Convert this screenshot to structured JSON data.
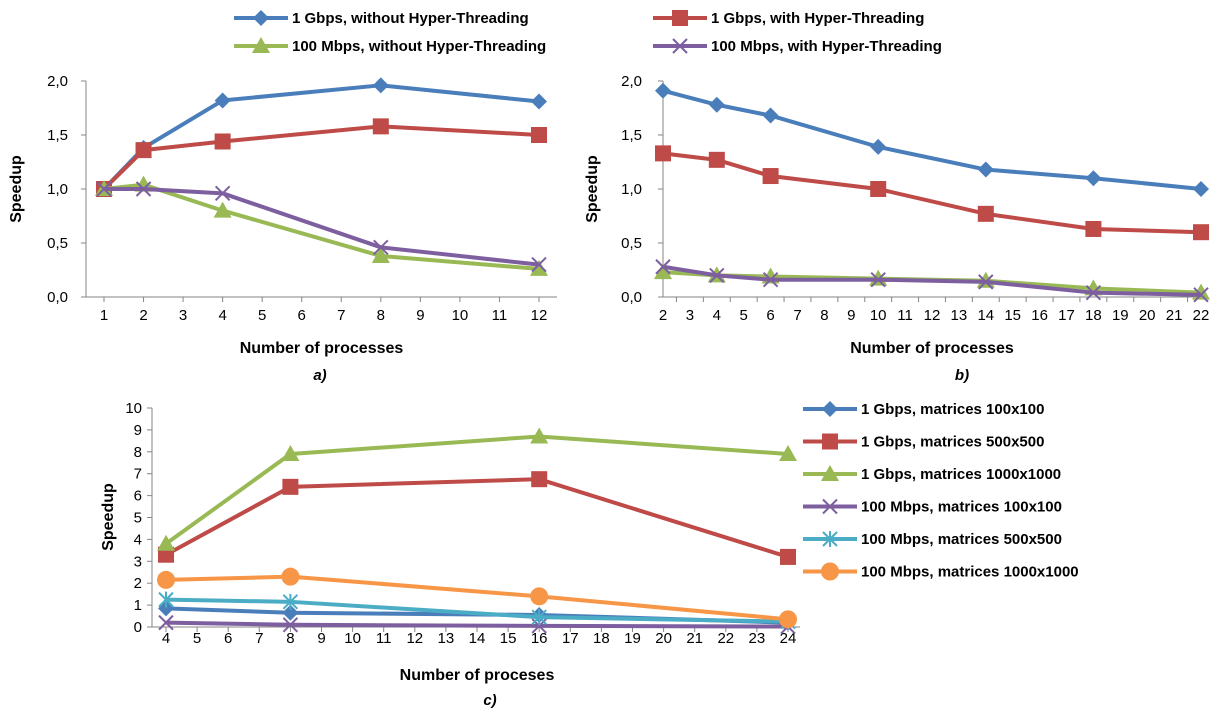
{
  "top_legend": [
    {
      "label": "1 Gbps, without Hyper-Threading",
      "color": "#4a7ebb",
      "marker": "diamond"
    },
    {
      "label": "1 Gbps, with Hyper-Threading",
      "color": "#be4b48",
      "marker": "square"
    },
    {
      "label": "100 Mbps, without Hyper-Threading",
      "color": "#98b954",
      "marker": "triangle"
    },
    {
      "label": "100 Mbps, with Hyper-Threading",
      "color": "#7d5fa0",
      "marker": "x"
    }
  ],
  "bottom_legend": [
    {
      "label": "1 Gbps, matrices 100x100",
      "color": "#4a7ebb",
      "marker": "diamond"
    },
    {
      "label": "1 Gbps, matrices 500x500",
      "color": "#be4b48",
      "marker": "square"
    },
    {
      "label": "1 Gbps, matrices 1000x1000",
      "color": "#98b954",
      "marker": "triangle"
    },
    {
      "label": "100 Mbps, matrices 100x100",
      "color": "#7d5fa0",
      "marker": "x"
    },
    {
      "label": "100 Mbps, matrices 500x500",
      "color": "#4bacc6",
      "marker": "star"
    },
    {
      "label": "100 Mbps, matrices 1000x1000",
      "color": "#f79646",
      "marker": "circle"
    }
  ],
  "chart_data": [
    {
      "type": "line",
      "caption": "a)",
      "xlabel": "Number of processes",
      "ylabel": "Speedup",
      "xlim": [
        1,
        12
      ],
      "ylim": [
        0,
        2
      ],
      "xticks": [
        "1",
        "2",
        "3",
        "4",
        "5",
        "6",
        "7",
        "8",
        "9",
        "10",
        "11",
        "12"
      ],
      "yticks": [
        "0,0",
        "0,5",
        "1,0",
        "1,5",
        "2,0"
      ],
      "series": [
        {
          "name": "1 Gbps, without Hyper-Threading",
          "x": [
            1,
            2,
            4,
            8,
            12
          ],
          "y": [
            1.0,
            1.38,
            1.82,
            1.96,
            1.81
          ]
        },
        {
          "name": "1 Gbps, with Hyper-Threading",
          "x": [
            1,
            2,
            4,
            8,
            12
          ],
          "y": [
            1.0,
            1.36,
            1.44,
            1.58,
            1.5
          ]
        },
        {
          "name": "100 Mbps, without Hyper-Threading",
          "x": [
            1,
            2,
            4,
            8,
            12
          ],
          "y": [
            1.0,
            1.04,
            0.8,
            0.38,
            0.26
          ]
        },
        {
          "name": "100 Mbps, with Hyper-Threading",
          "x": [
            1,
            2,
            4,
            8,
            12
          ],
          "y": [
            1.0,
            1.0,
            0.96,
            0.46,
            0.3
          ]
        }
      ]
    },
    {
      "type": "line",
      "caption": "b)",
      "xlabel": "Number of processes",
      "ylabel": "Speedup",
      "xlim": [
        2,
        22
      ],
      "ylim": [
        0,
        2
      ],
      "xticks": [
        "2",
        "3",
        "4",
        "5",
        "6",
        "7",
        "8",
        "9",
        "10",
        "11",
        "12",
        "13",
        "14",
        "15",
        "16",
        "17",
        "18",
        "19",
        "20",
        "21",
        "22"
      ],
      "yticks": [
        "0,0",
        "0,5",
        "1,0",
        "1,5",
        "2,0"
      ],
      "series": [
        {
          "name": "1 Gbps, without Hyper-Threading",
          "x": [
            2,
            4,
            6,
            10,
            14,
            18,
            22
          ],
          "y": [
            1.91,
            1.78,
            1.68,
            1.39,
            1.18,
            1.1,
            1.0
          ]
        },
        {
          "name": "1 Gbps, with Hyper-Threading",
          "x": [
            2,
            4,
            6,
            10,
            14,
            18,
            22
          ],
          "y": [
            1.33,
            1.27,
            1.12,
            1.0,
            0.77,
            0.63,
            0.6
          ]
        },
        {
          "name": "100 Mbps, without Hyper-Threading",
          "x": [
            2,
            4,
            6,
            10,
            14,
            18,
            22
          ],
          "y": [
            0.23,
            0.2,
            0.19,
            0.17,
            0.15,
            0.08,
            0.04
          ]
        },
        {
          "name": "100 Mbps, with Hyper-Threading",
          "x": [
            2,
            4,
            6,
            10,
            14,
            18,
            22
          ],
          "y": [
            0.28,
            0.2,
            0.16,
            0.16,
            0.14,
            0.04,
            0.02
          ]
        }
      ]
    },
    {
      "type": "line",
      "caption": "c)",
      "xlabel": "Number of proceses",
      "ylabel": "Speedup",
      "xlim": [
        4,
        24
      ],
      "ylim": [
        0,
        10
      ],
      "xticks": [
        "4",
        "5",
        "6",
        "7",
        "8",
        "9",
        "10",
        "11",
        "12",
        "13",
        "14",
        "15",
        "16",
        "17",
        "18",
        "19",
        "20",
        "21",
        "22",
        "23",
        "24"
      ],
      "yticks": [
        "0",
        "1",
        "2",
        "3",
        "4",
        "5",
        "6",
        "7",
        "8",
        "9",
        "10"
      ],
      "series": [
        {
          "name": "1 Gbps, matrices 100x100",
          "x": [
            4,
            8,
            16,
            24
          ],
          "y": [
            0.85,
            0.65,
            0.55,
            0.2
          ]
        },
        {
          "name": "1 Gbps, matrices 500x500",
          "x": [
            4,
            8,
            16,
            24
          ],
          "y": [
            3.3,
            6.4,
            6.75,
            3.2
          ]
        },
        {
          "name": "1 Gbps, matrices 1000x1000",
          "x": [
            4,
            8,
            16,
            24
          ],
          "y": [
            3.8,
            7.9,
            8.7,
            7.9
          ]
        },
        {
          "name": "100 Mbps, matrices 100x100",
          "x": [
            4,
            8,
            16,
            24
          ],
          "y": [
            0.2,
            0.1,
            0.05,
            0.02
          ]
        },
        {
          "name": "100 Mbps, matrices 500x500",
          "x": [
            4,
            8,
            16,
            24
          ],
          "y": [
            1.25,
            1.15,
            0.45,
            0.25
          ]
        },
        {
          "name": "100 Mbps, matrices 1000x1000",
          "x": [
            4,
            8,
            16,
            24
          ],
          "y": [
            2.15,
            2.3,
            1.4,
            0.35
          ]
        }
      ]
    }
  ]
}
